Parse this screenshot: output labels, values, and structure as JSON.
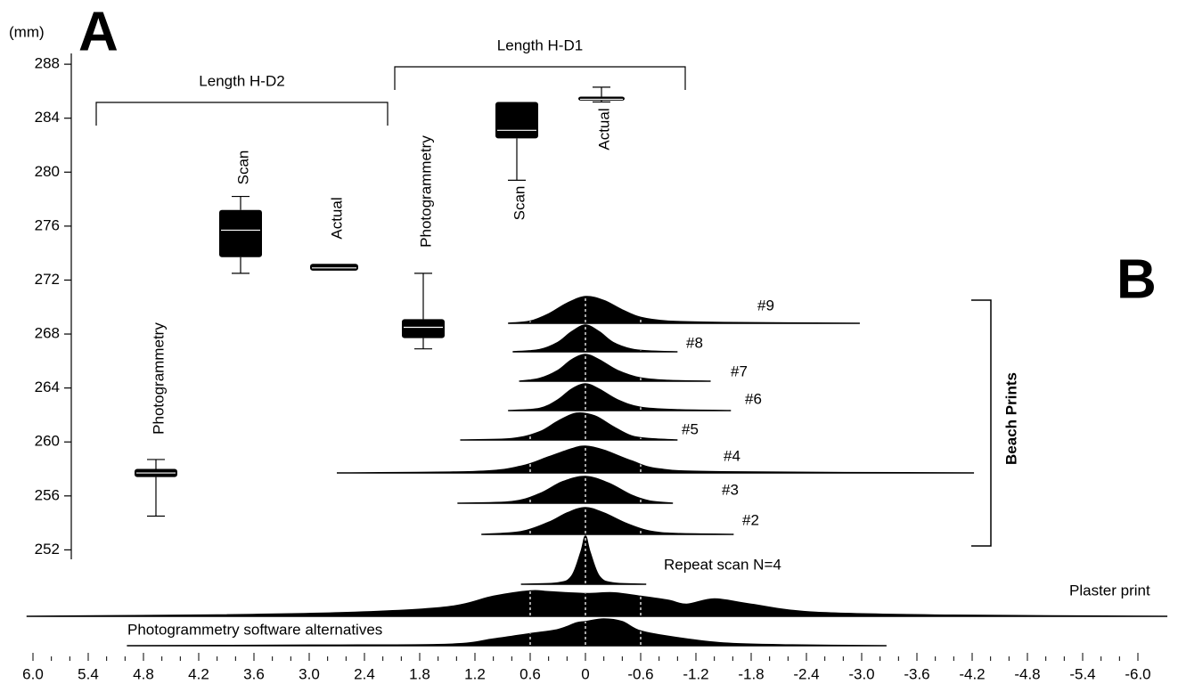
{
  "chart_data": [
    {
      "type": "box",
      "panel": "A",
      "ylabel": "(mm)",
      "ylim": [
        251.3,
        288.8
      ],
      "yticks": [
        252,
        256,
        260,
        264,
        268,
        272,
        276,
        280,
        284,
        288
      ],
      "groups": [
        {
          "label": "Length H-D2"
        },
        {
          "label": "Length H-D1"
        }
      ],
      "boxes": [
        {
          "label": "Photogrammetry",
          "whisker_low": 254.5,
          "q1": 257.4,
          "median": 257.7,
          "q3": 258.0,
          "whisker_high": 258.7
        },
        {
          "label": "Scan",
          "whisker_low": 272.5,
          "q1": 273.7,
          "median": 275.7,
          "q3": 277.2,
          "whisker_high": 278.2
        },
        {
          "label": "Actual",
          "whisker_low": 272.7,
          "q1": 272.7,
          "median": 272.9,
          "q3": 273.2,
          "whisker_high": 273.2
        },
        {
          "label": "Photogrammetry",
          "whisker_low": 266.9,
          "q1": 267.7,
          "median": 268.5,
          "q3": 269.1,
          "whisker_high": 272.5
        },
        {
          "label": "Scan",
          "whisker_low": 279.4,
          "q1": 282.5,
          "median": 283.1,
          "q3": 285.2,
          "whisker_high": 285.2
        },
        {
          "label": "Actual",
          "whisker_low": 285.2,
          "q1": 285.3,
          "median": 285.4,
          "q3": 285.6,
          "whisker_high": 286.3
        }
      ]
    },
    {
      "type": "ridgeline",
      "panel": "B",
      "group_label": "Beach Prints",
      "xlim": [
        6,
        -6
      ],
      "xticks": [
        {
          "value": 6,
          "label": "6.0"
        },
        5.4,
        4.8,
        4.2,
        3.6,
        {
          "value": 3,
          "label": "3.0"
        },
        2.4,
        1.8,
        1.2,
        0.6,
        0,
        -0.6,
        -1.2,
        -1.8,
        -2.4,
        {
          "value": -3,
          "label": "-3.0"
        },
        -3.6,
        -4.2,
        -4.8,
        -5.4,
        {
          "value": -6,
          "label": "-6.0"
        }
      ],
      "xminorticks": [
        5.8,
        5.6,
        5.2,
        5.0,
        4.6,
        4.4,
        4.0,
        3.8,
        3.4,
        3.2,
        2.8,
        2.6,
        2.2,
        2.0,
        1.6,
        1.4,
        1.0,
        0.8,
        0.4,
        0.2,
        -0.2,
        -0.4,
        -0.8,
        -1.0,
        -1.4,
        -1.6,
        -2.0,
        -2.2,
        -2.6,
        -2.8,
        -3.2,
        -3.4,
        -3.8,
        -4.0,
        -4.4,
        -4.6,
        -5.0,
        -5.2,
        -5.6,
        -5.8
      ],
      "reference_lines": [
        0.6,
        0,
        -0.6
      ],
      "ridges": [
        {
          "name": "#9",
          "x": [
            0.84,
            0.6,
            0.4,
            0.2,
            0,
            -0.2,
            -0.4,
            -0.6,
            -0.9,
            -1.5,
            -2.98
          ],
          "values": [
            0,
            0.08,
            0.35,
            0.75,
            1.0,
            0.85,
            0.5,
            0.22,
            0.08,
            0.03,
            0
          ]
        },
        {
          "name": "#8",
          "x": [
            0.79,
            0.5,
            0.3,
            0.15,
            0,
            -0.15,
            -0.3,
            -0.5,
            -0.7,
            -1.0
          ],
          "values": [
            0,
            0.08,
            0.35,
            0.75,
            1.0,
            0.75,
            0.35,
            0.1,
            0.03,
            0
          ]
        },
        {
          "name": "#7",
          "x": [
            0.72,
            0.5,
            0.3,
            0.15,
            0,
            -0.15,
            -0.35,
            -0.6,
            -0.9,
            -1.36
          ],
          "values": [
            0,
            0.1,
            0.4,
            0.8,
            1.0,
            0.8,
            0.4,
            0.12,
            0.03,
            0
          ]
        },
        {
          "name": "#6",
          "x": [
            0.84,
            0.5,
            0.3,
            0.15,
            0,
            -0.15,
            -0.35,
            -0.6,
            -1.0,
            -1.58
          ],
          "values": [
            0,
            0.08,
            0.4,
            0.8,
            1.0,
            0.8,
            0.4,
            0.12,
            0.03,
            0
          ]
        },
        {
          "name": "#5",
          "x": [
            1.36,
            0.8,
            0.5,
            0.3,
            0.1,
            -0.1,
            -0.3,
            -0.5,
            -0.7,
            -1.0
          ],
          "values": [
            0,
            0.05,
            0.3,
            0.7,
            1.0,
            0.9,
            0.5,
            0.15,
            0.05,
            0
          ]
        },
        {
          "name": "#4",
          "x": [
            2.7,
            1.2,
            0.7,
            0.4,
            0.15,
            0,
            -0.2,
            -0.5,
            -0.8,
            -1.5,
            -4.22
          ],
          "values": [
            0,
            0.05,
            0.25,
            0.6,
            0.9,
            1.0,
            0.85,
            0.45,
            0.15,
            0.04,
            0
          ]
        },
        {
          "name": "#3",
          "x": [
            1.39,
            0.8,
            0.5,
            0.25,
            0,
            -0.25,
            -0.5,
            -0.7,
            -0.95
          ],
          "values": [
            0,
            0.06,
            0.35,
            0.8,
            1.0,
            0.75,
            0.3,
            0.08,
            0
          ]
        },
        {
          "name": "#2",
          "x": [
            1.13,
            0.7,
            0.4,
            0.2,
            0,
            -0.2,
            -0.45,
            -0.7,
            -1.0,
            -1.61
          ],
          "values": [
            0,
            0.1,
            0.45,
            0.8,
            1.0,
            0.8,
            0.4,
            0.12,
            0.03,
            0
          ]
        },
        {
          "name": "Repeat scan N=4",
          "x": [
            0.7,
            0.3,
            0.15,
            0.05,
            0,
            -0.05,
            -0.15,
            -0.3,
            -0.66
          ],
          "values": [
            0,
            0.05,
            0.3,
            1.2,
            1.8,
            1.2,
            0.3,
            0.05,
            0
          ]
        },
        {
          "name": "Plaster print",
          "x": [
            6.07,
            4,
            2.5,
            1.5,
            1.0,
            0.6,
            0.4,
            0,
            -0.3,
            -0.6,
            -0.9,
            -1.1,
            -1.4,
            -1.8,
            -2.5,
            -4,
            -6.32
          ],
          "values": [
            0,
            0.05,
            0.15,
            0.35,
            0.75,
            0.95,
            0.92,
            0.85,
            0.88,
            0.75,
            0.6,
            0.45,
            0.65,
            0.45,
            0.15,
            0.04,
            0
          ]
        },
        {
          "name": "Photogrammetry software alternatives",
          "x": [
            4.98,
            3,
            1.5,
            1.0,
            0.6,
            0.3,
            0.1,
            0,
            -0.2,
            -0.4,
            -0.6,
            -1.0,
            -1.5,
            -2.2,
            -3.27
          ],
          "values": [
            0,
            0.02,
            0.05,
            0.25,
            0.45,
            0.6,
            0.85,
            0.9,
            1.0,
            0.9,
            0.55,
            0.3,
            0.1,
            0.03,
            0
          ]
        }
      ]
    }
  ]
}
